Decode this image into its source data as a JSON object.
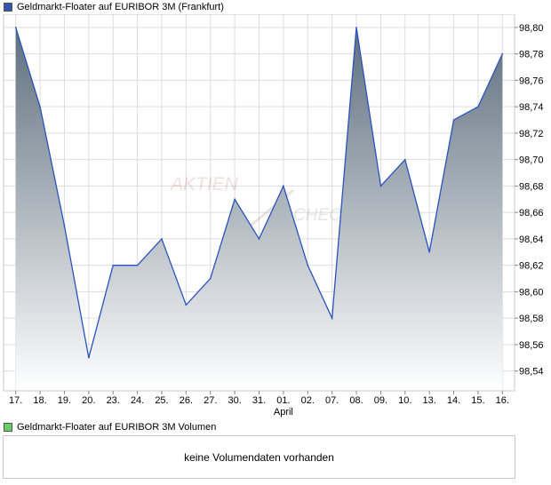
{
  "colors": {
    "price_legend": "#3355aa",
    "volume_legend": "#66cc66",
    "line": "#2a52be",
    "fill_top": "#5e6f7e",
    "fill_bottom": "#ffffff",
    "grid": "#dddddd"
  },
  "legend": {
    "price_label": "Geldmarkt-Floater auf EURIBOR 3M (Frankfurt)",
    "volume_label": "Geldmarkt-Floater auf EURIBOR 3M Volumen"
  },
  "watermark": {
    "line1": "AKTIEN",
    "line2": "CHECK"
  },
  "volume_panel": {
    "message": "keine Volumendaten vorhanden"
  },
  "chart_data": {
    "type": "area",
    "x": [
      "17.",
      "18.",
      "19.",
      "20.",
      "23.",
      "24.",
      "25.",
      "26.",
      "27.",
      "30.",
      "31.",
      "01.",
      "02.",
      "07.",
      "08.",
      "09.",
      "10.",
      "13.",
      "14.",
      "15.",
      "16."
    ],
    "x_sublabels": {
      "01.": "April"
    },
    "values": [
      98.8,
      98.74,
      98.65,
      98.55,
      98.62,
      98.62,
      98.64,
      98.59,
      98.61,
      98.67,
      98.64,
      98.68,
      98.62,
      98.58,
      98.8,
      98.68,
      98.7,
      98.63,
      98.73,
      98.74,
      98.78
    ],
    "y_ticks": [
      "98,54",
      "98,56",
      "98,58",
      "98,60",
      "98,62",
      "98,64",
      "98,66",
      "98,68",
      "98,70",
      "98,72",
      "98,74",
      "98,76",
      "98,78",
      "98,80"
    ],
    "ylim": [
      98.525,
      98.81
    ],
    "grid": true,
    "y_axis_side": "right"
  }
}
